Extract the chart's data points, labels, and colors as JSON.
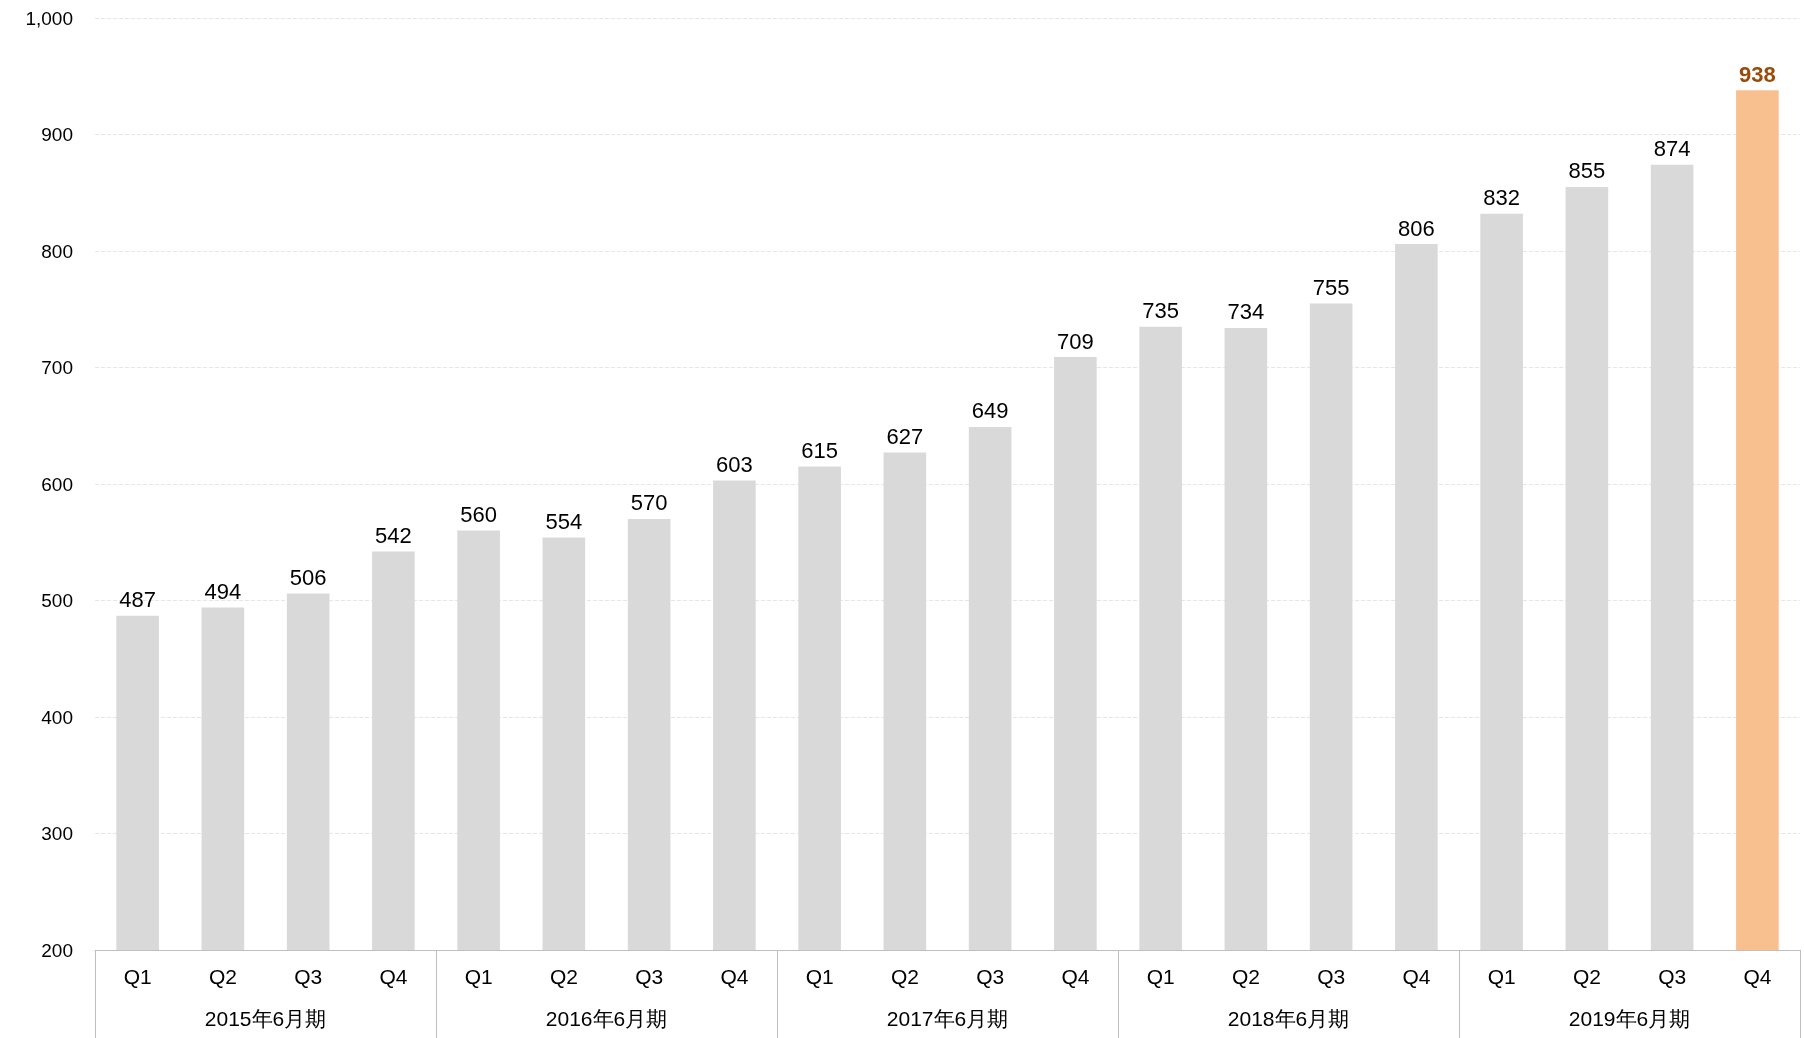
{
  "chart_data": {
    "type": "bar",
    "categories": [
      "Q1",
      "Q2",
      "Q3",
      "Q4",
      "Q1",
      "Q2",
      "Q3",
      "Q4",
      "Q1",
      "Q2",
      "Q3",
      "Q4",
      "Q1",
      "Q2",
      "Q3",
      "Q4",
      "Q1",
      "Q2",
      "Q3",
      "Q4"
    ],
    "values": [
      487,
      494,
      506,
      542,
      560,
      554,
      570,
      603,
      615,
      627,
      649,
      709,
      735,
      734,
      755,
      806,
      832,
      855,
      874,
      938
    ],
    "colors": [
      "#d9d9d9",
      "#d9d9d9",
      "#d9d9d9",
      "#d9d9d9",
      "#d9d9d9",
      "#d9d9d9",
      "#d9d9d9",
      "#d9d9d9",
      "#d9d9d9",
      "#d9d9d9",
      "#d9d9d9",
      "#d9d9d9",
      "#d9d9d9",
      "#d9d9d9",
      "#d9d9d9",
      "#d9d9d9",
      "#d9d9d9",
      "#d9d9d9",
      "#d9d9d9",
      "#f8c08f"
    ],
    "ylim": [
      200,
      1000
    ],
    "yticks": [
      200,
      300,
      400,
      500,
      600,
      700,
      800,
      900,
      {
        "value": 1000,
        "label": "1,000"
      }
    ],
    "annotations": [
      "2015年6月期",
      "2016年6月期",
      "2017年6月期",
      "2018年6月期",
      "2019年6月期"
    ],
    "data_labels": true,
    "grid": "y"
  }
}
